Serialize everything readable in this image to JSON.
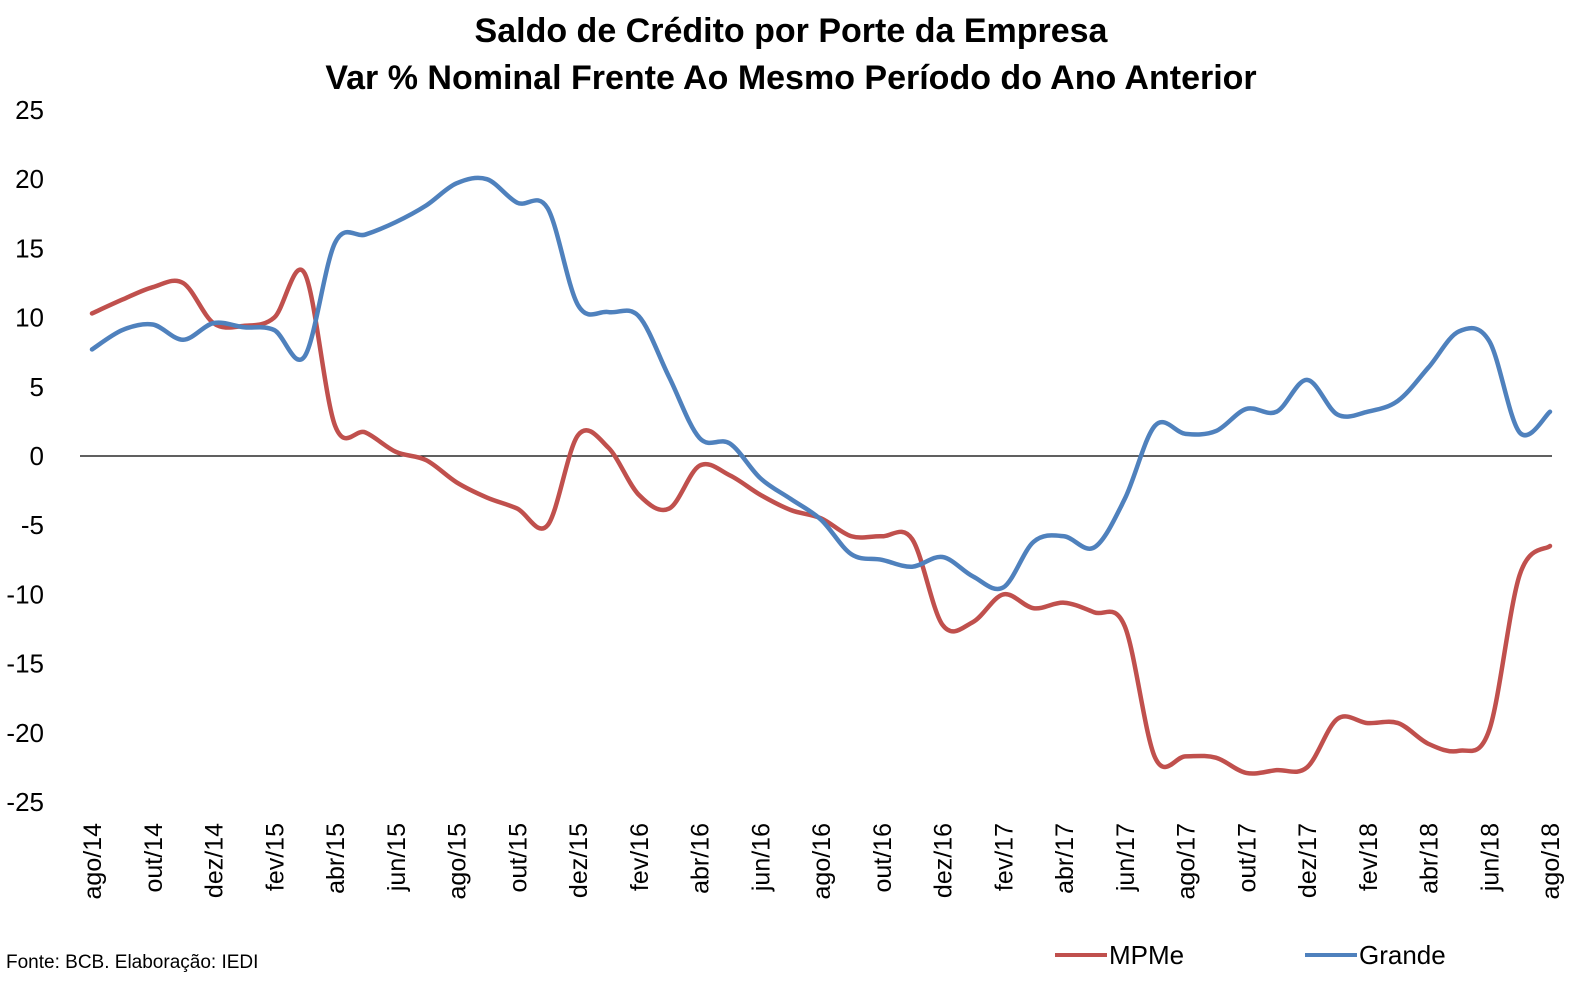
{
  "title_line1": "Saldo de Crédito por Porte da Empresa",
  "title_line2": "Var % Nominal Frente Ao Mesmo Período do Ano Anterior",
  "source": "Fonte: BCB. Elaboração: IEDI",
  "chart_data": {
    "type": "line",
    "title": "Saldo de Crédito por Porte da Empresa / Var % Nominal Frente Ao Mesmo Período do Ano Anterior",
    "xlabel": "",
    "ylabel": "",
    "ylim": [
      -25,
      25
    ],
    "yticks": [
      25,
      20,
      15,
      10,
      5,
      0,
      -5,
      -10,
      -15,
      -20,
      -25
    ],
    "grid": false,
    "zero_line": true,
    "legend_position": "bottom-right",
    "x": [
      "ago/14",
      "set/14",
      "out/14",
      "nov/14",
      "dez/14",
      "jan/15",
      "fev/15",
      "mar/15",
      "abr/15",
      "mai/15",
      "jun/15",
      "jul/15",
      "ago/15",
      "set/15",
      "out/15",
      "nov/15",
      "dez/15",
      "jan/16",
      "fev/16",
      "mar/16",
      "abr/16",
      "mai/16",
      "jun/16",
      "jul/16",
      "ago/16",
      "set/16",
      "out/16",
      "nov/16",
      "dez/16",
      "jan/17",
      "fev/17",
      "mar/17",
      "abr/17",
      "mai/17",
      "jun/17",
      "jul/17",
      "ago/17",
      "set/17",
      "out/17",
      "nov/17",
      "dez/17",
      "jan/18",
      "fev/18",
      "mar/18",
      "abr/18",
      "mai/18",
      "jun/18",
      "jul/18",
      "ago/18"
    ],
    "x_tick_labels": [
      "ago/14",
      "out/14",
      "dez/14",
      "fev/15",
      "abr/15",
      "jun/15",
      "ago/15",
      "out/15",
      "dez/15",
      "fev/16",
      "abr/16",
      "jun/16",
      "ago/16",
      "out/16",
      "dez/16",
      "fev/17",
      "abr/17",
      "jun/17",
      "ago/17",
      "out/17",
      "dez/17",
      "fev/18",
      "abr/18",
      "jun/18",
      "ago/18"
    ],
    "series": [
      {
        "name": "MPMe",
        "color": "#c0504d",
        "values": [
          10.3,
          11.3,
          12.2,
          12.5,
          9.6,
          9.4,
          10.0,
          13.2,
          2.2,
          1.7,
          0.3,
          -0.3,
          -1.9,
          -3.0,
          -3.8,
          -5.0,
          1.5,
          0.6,
          -2.8,
          -3.8,
          -0.7,
          -1.4,
          -2.8,
          -3.9,
          -4.5,
          -5.8,
          -5.8,
          -6.0,
          -12.2,
          -12.0,
          -10.0,
          -11.0,
          -10.6,
          -11.3,
          -12.3,
          -21.8,
          -21.7,
          -21.8,
          -22.9,
          -22.7,
          -22.5,
          -19.0,
          -19.3,
          -19.3,
          -20.8,
          -21.3,
          -19.8,
          -8.6,
          -6.5
        ]
      },
      {
        "name": "Grande",
        "color": "#4f81bd",
        "values": [
          7.7,
          9.1,
          9.5,
          8.4,
          9.6,
          9.3,
          9.1,
          7.2,
          15.4,
          16.0,
          16.9,
          18.1,
          19.7,
          20.0,
          18.3,
          17.9,
          10.9,
          10.4,
          10.1,
          5.7,
          1.3,
          0.9,
          -1.6,
          -3.1,
          -4.6,
          -7.1,
          -7.5,
          -8.0,
          -7.3,
          -8.7,
          -9.5,
          -6.2,
          -5.8,
          -6.6,
          -3.1,
          2.2,
          1.6,
          1.8,
          3.4,
          3.2,
          5.5,
          3.0,
          3.2,
          4.0,
          6.4,
          9.0,
          8.3,
          1.7,
          3.2
        ]
      }
    ]
  }
}
